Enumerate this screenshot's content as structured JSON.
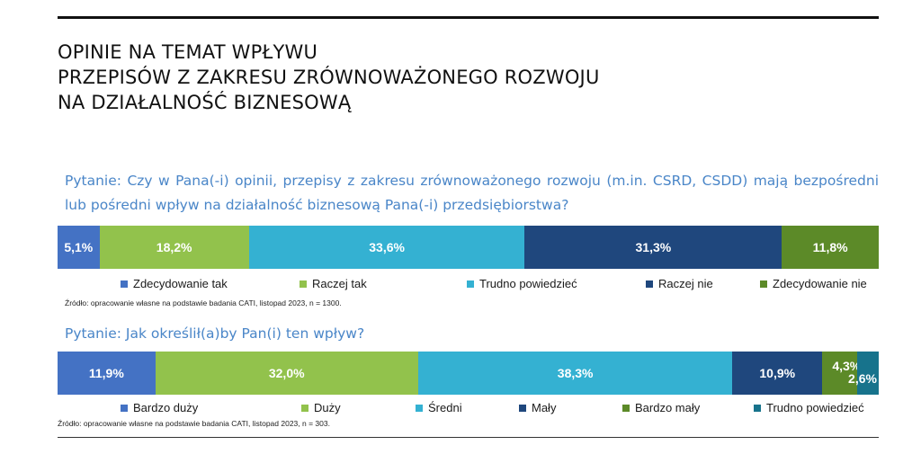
{
  "title_lines": [
    "OPINIE NA TEMAT WPŁYWU",
    "PRZEPISÓW Z ZAKRESU ZRÓWNOWAŻONEGO ROZWOJU",
    "NA DZIAŁALNOŚĆ BIZNESOWĄ"
  ],
  "chart_data": [
    {
      "type": "bar",
      "orientation": "horizontal-stacked-100",
      "title": "Pytanie: Czy w Pana(-i) opinii, przepisy z zakresu zrównoważonego rozwoju (m.in. CSRD, CSDD) mają bezpośredni lub pośredni wpływ na działalność biznesową Pana(-i) przedsiębiorstwa?",
      "series": [
        {
          "name": "Zdecydowanie tak",
          "value": 5.1,
          "label": "5,1%",
          "color": "#4472c4"
        },
        {
          "name": "Raczej tak",
          "value": 18.2,
          "label": "18,2%",
          "color": "#92c24c"
        },
        {
          "name": "Trudno powiedzieć",
          "value": 33.6,
          "label": "33,6%",
          "color": "#34b1d2"
        },
        {
          "name": "Raczej nie",
          "value": 31.3,
          "label": "31,3%",
          "color": "#1f477d"
        },
        {
          "name": "Zdecydowanie nie",
          "value": 11.8,
          "label": "11,8%",
          "color": "#5c8a28"
        }
      ],
      "source": "Źródło: opracowanie własne na podstawie badania CATI, listopad 2023, n = 1300."
    },
    {
      "type": "bar",
      "orientation": "horizontal-stacked-100",
      "title": "Pytanie: Jak określił(a)by Pan(i) ten wpływ?",
      "series": [
        {
          "name": "Bardzo duży",
          "value": 11.9,
          "label": "11,9%",
          "color": "#4472c4"
        },
        {
          "name": "Duży",
          "value": 32.0,
          "label": "32,0%",
          "color": "#92c24c"
        },
        {
          "name": "Średni",
          "value": 38.3,
          "label": "38,3%",
          "color": "#34b1d2"
        },
        {
          "name": "Mały",
          "value": 10.9,
          "label": "10,9%",
          "color": "#1f477d"
        },
        {
          "name": "Bardzo mały",
          "value": 4.3,
          "label": "4,3%",
          "color": "#5c8a28"
        },
        {
          "name": "Trudno powiedzieć",
          "value": 2.6,
          "label": "2,6%",
          "color": "#17738c"
        }
      ],
      "source": "Źródło: opracowanie własne na podstawie badania CATI, listopad 2023, n = 303."
    }
  ]
}
